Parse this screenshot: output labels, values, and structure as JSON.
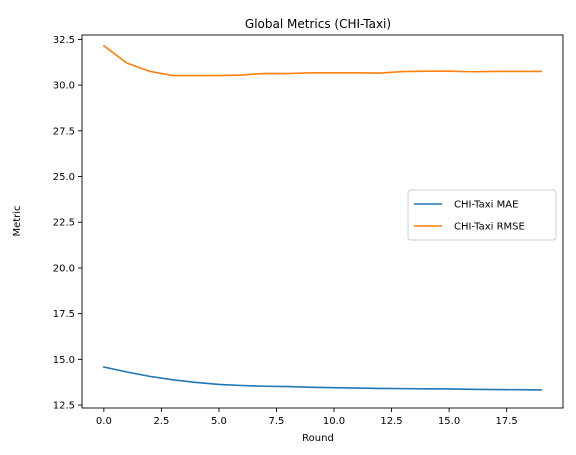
{
  "chart_data": {
    "type": "line",
    "title": "Global Metrics (CHI-Taxi)",
    "xlabel": "Round",
    "ylabel": "Metric",
    "xlim": [
      -0.95,
      19.95
    ],
    "ylim": [
      12.34,
      32.74
    ],
    "xticks": [
      0.0,
      2.5,
      5.0,
      7.5,
      10.0,
      12.5,
      15.0,
      17.5
    ],
    "xtick_labels": [
      "0.0",
      "2.5",
      "5.0",
      "7.5",
      "10.0",
      "12.5",
      "15.0",
      "17.5"
    ],
    "yticks": [
      12.5,
      15.0,
      17.5,
      20.0,
      22.5,
      25.0,
      27.5,
      30.0,
      32.5
    ],
    "ytick_labels": [
      "12.5",
      "15.0",
      "17.5",
      "20.0",
      "22.5",
      "25.0",
      "27.5",
      "30.0",
      "32.5"
    ],
    "grid": false,
    "legend_position": "center-right",
    "x": [
      0,
      1,
      2,
      3,
      4,
      5,
      6,
      7,
      8,
      9,
      10,
      11,
      12,
      13,
      14,
      15,
      16,
      17,
      18,
      19
    ],
    "series": [
      {
        "name": "CHI-Taxi MAE",
        "color": "#1f77b4",
        "values": [
          14.58,
          14.31,
          14.07,
          13.88,
          13.74,
          13.63,
          13.57,
          13.53,
          13.51,
          13.47,
          13.45,
          13.43,
          13.41,
          13.4,
          13.39,
          13.38,
          13.36,
          13.35,
          13.34,
          13.33
        ]
      },
      {
        "name": "CHI-Taxi RMSE",
        "color": "#ff7f0e",
        "values": [
          32.15,
          31.2,
          30.75,
          30.52,
          30.52,
          30.52,
          30.55,
          30.64,
          30.63,
          30.67,
          30.67,
          30.67,
          30.66,
          30.74,
          30.76,
          30.76,
          30.73,
          30.75,
          30.75,
          30.75
        ]
      }
    ]
  }
}
